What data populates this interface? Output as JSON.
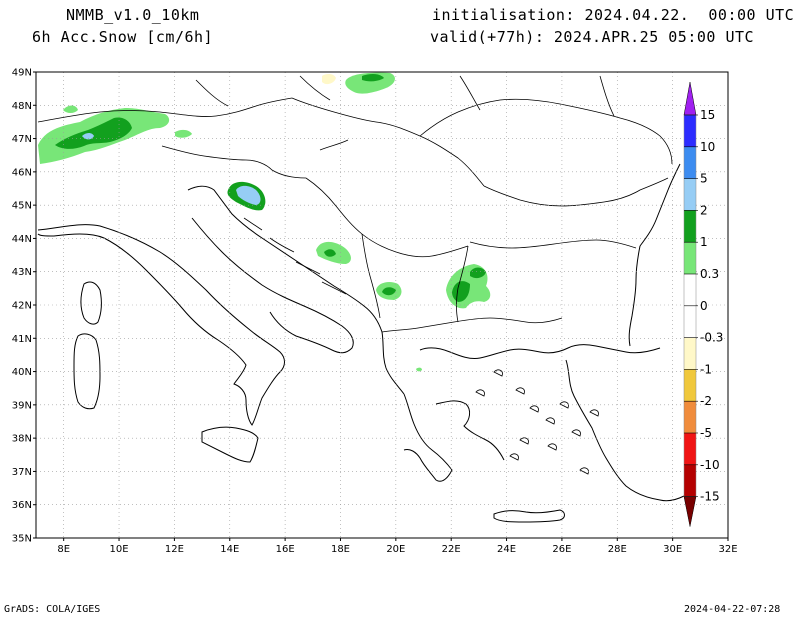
{
  "header": {
    "model": "NMMB_v1.0_10km",
    "field": "6h Acc.Snow [cm/6h]",
    "init": "initialisation: 2024.04.22.  00:00 UTC",
    "valid": "valid(+77h): 2024.APR.25 05:00 UTC"
  },
  "footer": {
    "left": "GrADS: COLA/IGES",
    "right": "2024-04-22-07:28"
  },
  "map": {
    "lat_labels": [
      "49N",
      "48N",
      "47N",
      "46N",
      "45N",
      "44N",
      "43N",
      "42N",
      "41N",
      "40N",
      "39N",
      "38N",
      "37N",
      "36N",
      "35N"
    ],
    "lon_labels": [
      "8E",
      "10E",
      "12E",
      "14E",
      "16E",
      "18E",
      "20E",
      "22E",
      "24E",
      "26E",
      "28E",
      "30E",
      "32E"
    ],
    "lat_values": [
      49,
      48,
      47,
      46,
      45,
      44,
      43,
      42,
      41,
      40,
      39,
      38,
      37,
      36,
      35
    ],
    "lon_values": [
      8,
      10,
      12,
      14,
      16,
      18,
      20,
      22,
      24,
      26,
      28,
      30,
      32
    ],
    "extent": {
      "lon_min": 7,
      "lon_max": 32,
      "lat_min": 35,
      "lat_max": 49
    }
  },
  "colorbar": {
    "labels": [
      "15",
      "10",
      "5",
      "2",
      "1",
      "0.3",
      "0",
      "-0.3",
      "-1",
      "-2",
      "-5",
      "-10",
      "-15"
    ],
    "colors": [
      "#a020f0",
      "#2c2cff",
      "#3c8cf0",
      "#96cdf5",
      "#12a01e",
      "#78e678",
      "#ffffff",
      "#fff8c8",
      "#f0c83c",
      "#f08c3c",
      "#f01414",
      "#b40000",
      "#780000"
    ],
    "top_arrow_color": "#a020f0",
    "bottom_arrow_color": "#780000"
  },
  "snow_colors": {
    "light": "#78e678",
    "medium": "#12a01e",
    "heavy": "#96cdf5",
    "pale": "#fff8c8"
  }
}
